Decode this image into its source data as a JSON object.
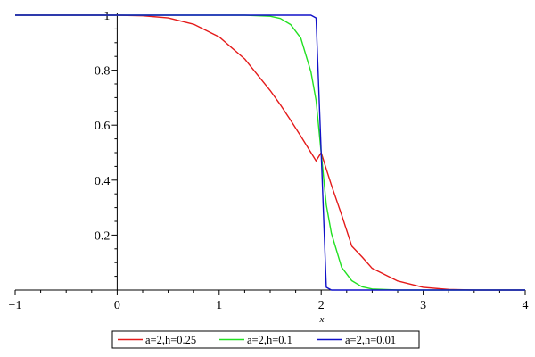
{
  "chart_data": {
    "type": "line",
    "title": "",
    "xlabel": "x",
    "ylabel": "",
    "xlim": [
      -1,
      4
    ],
    "ylim": [
      0,
      1
    ],
    "x_ticks": [
      -1,
      0,
      1,
      2,
      3,
      4
    ],
    "x_tick_labels": [
      "−1",
      "0",
      "1",
      "2",
      "3",
      "4"
    ],
    "y_ticks": [
      0.2,
      0.4,
      0.6,
      0.8,
      1
    ],
    "y_tick_labels": [
      "0.2",
      "0.4",
      "0.6",
      "0.8",
      "1"
    ],
    "grid": false,
    "legend_position": "bottom",
    "x": [
      -1.0,
      -0.5,
      0.0,
      0.25,
      0.5,
      0.75,
      1.0,
      1.25,
      1.5,
      1.6,
      1.7,
      1.8,
      1.9,
      1.95,
      2.0,
      2.05,
      2.1,
      2.2,
      2.3,
      2.4,
      2.5,
      2.75,
      3.0,
      3.25,
      3.5,
      4.0
    ],
    "series": [
      {
        "name": "a=2,h=0.25",
        "color": "#e41a1a",
        "values": [
          1.0,
          1.0,
          1.0,
          0.998,
          0.99,
          0.967,
          0.921,
          0.841,
          0.726,
          0.674,
          0.618,
          0.56,
          0.5,
          0.47,
          0.5,
          0.44,
          0.382,
          0.274,
          0.16,
          0.121,
          0.079,
          0.033,
          0.01,
          0.002,
          0.0,
          0.0
        ]
      },
      {
        "name": "a=2,h=0.1",
        "color": "#22e022",
        "values": [
          1.0,
          1.0,
          1.0,
          1.0,
          1.0,
          1.0,
          1.0,
          1.0,
          0.996,
          0.988,
          0.966,
          0.917,
          0.793,
          0.69,
          0.5,
          0.31,
          0.207,
          0.083,
          0.034,
          0.012,
          0.004,
          0.0,
          0.0,
          0.0,
          0.0,
          0.0
        ]
      },
      {
        "name": "a=2,h=0.01",
        "color": "#1010c8",
        "values": [
          1.0,
          1.0,
          1.0,
          1.0,
          1.0,
          1.0,
          1.0,
          1.0,
          1.0,
          1.0,
          1.0,
          1.0,
          1.0,
          0.99,
          0.5,
          0.01,
          0.0,
          0.0,
          0.0,
          0.0,
          0.0,
          0.0,
          0.0,
          0.0,
          0.0,
          0.0
        ]
      }
    ]
  }
}
